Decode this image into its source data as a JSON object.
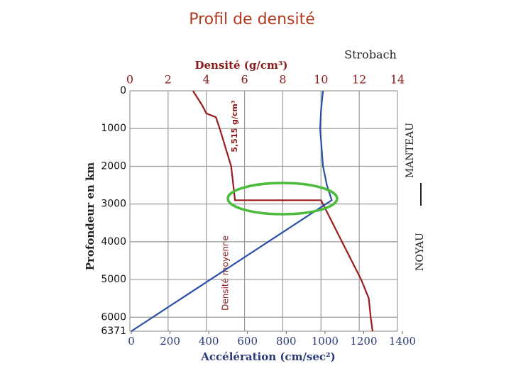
{
  "chart_data": {
    "type": "line",
    "title": "Profil de densité",
    "source": "Strobach",
    "ylabel": "Profondeur en km",
    "xlabel_top": "Densité (g/cm³)",
    "xlabel_bottom": "Accélération (cm/sec²)",
    "annotations": [
      "5,515 g/cm³",
      "Densité moyenne",
      "MANTEAU",
      "NOYAU"
    ],
    "ylim": [
      0,
      6371
    ],
    "yticks": [
      0,
      1000,
      2000,
      3000,
      4000,
      5000,
      6000,
      6371
    ],
    "xlim": [
      0,
      14
    ],
    "xticks": [
      0,
      2,
      4,
      6,
      8,
      10,
      12,
      14
    ],
    "x2lim": [
      0,
      1400
    ],
    "x2ticks": [
      0,
      200,
      400,
      600,
      800,
      1000,
      1200,
      1400
    ],
    "grid": true,
    "series": [
      {
        "color": "#9b1c1c",
        "axis": "x",
        "depth": [
          0,
          400,
          600,
          700,
          1000,
          2000,
          2900,
          2900,
          3200,
          4000,
          5000,
          5500,
          6000,
          6371
        ],
        "values": [
          3.3,
          3.8,
          4.0,
          4.5,
          4.7,
          5.3,
          5.5,
          10.0,
          10.3,
          11.1,
          12.1,
          12.5,
          12.6,
          12.7
        ]
      },
      {
        "color": "#2a4fa8",
        "axis": "x2",
        "depth": [
          0,
          500,
          1000,
          2000,
          2500,
          2900,
          6371
        ],
        "values": [
          990,
          980,
          975,
          990,
          1010,
          1035,
          0
        ]
      }
    ]
  }
}
